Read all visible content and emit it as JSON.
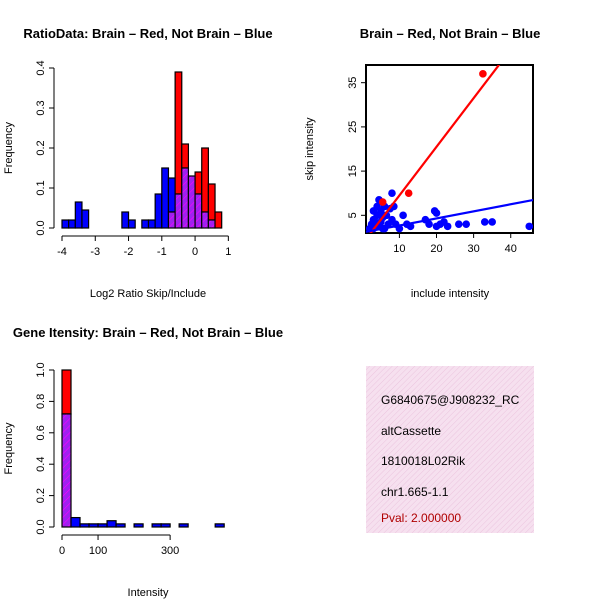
{
  "colors": {
    "red": "#ff0000",
    "blue": "#0000ff",
    "purple": "#a020f0",
    "pink_panel": "#f3d8ea",
    "pval_text": "#b00000",
    "axis": "#000000"
  },
  "chart_data": [
    {
      "id": "ratio_hist",
      "type": "bar",
      "title": "RatioData: Brain – Red, Not Brain – Blue",
      "xlabel": "Log2 Ratio Skip/Include",
      "ylabel": "Frequency",
      "xlim": [
        -4,
        1.2
      ],
      "ylim": [
        0,
        0.4
      ],
      "xticks": [
        "-4",
        "-3",
        "-2",
        "-1",
        "0",
        "1"
      ],
      "xtick_values": [
        -4,
        -3,
        -2,
        -1,
        0,
        1
      ],
      "yticks": [
        "0.0",
        "0.1",
        "0.2",
        "0.3",
        "0.4"
      ],
      "ytick_values": [
        0,
        0.1,
        0.2,
        0.3,
        0.4
      ],
      "bin_edges": [
        -4.0,
        -3.8,
        -3.6,
        -3.4,
        -3.2,
        -3.0,
        -2.8,
        -2.6,
        -2.4,
        -2.2,
        -2.0,
        -1.8,
        -1.6,
        -1.4,
        -1.2,
        -1.0,
        -0.8,
        -0.6,
        -0.4,
        -0.2,
        0.0,
        0.2,
        0.4,
        0.6,
        0.8,
        1.0,
        1.2
      ],
      "series": [
        {
          "name": "Brain",
          "color": "red",
          "values": [
            0,
            0,
            0,
            0,
            0,
            0,
            0,
            0,
            0,
            0,
            0,
            0,
            0,
            0,
            0,
            0,
            0.04,
            0.39,
            0.21,
            0.13,
            0.14,
            0.2,
            0.11,
            0.04,
            0,
            0
          ]
        },
        {
          "name": "Not Brain",
          "color": "blue",
          "values": [
            0.02,
            0.02,
            0.065,
            0.045,
            0,
            0,
            0,
            0,
            0,
            0.04,
            0.02,
            0,
            0.02,
            0.02,
            0.085,
            0.15,
            0.125,
            0.085,
            0.15,
            0.13,
            0.085,
            0.04,
            0.02,
            0,
            0,
            0
          ]
        }
      ]
    },
    {
      "id": "scatter",
      "type": "scatter",
      "title": "Brain – Red, Not Brain – Blue",
      "xlabel": "include intensity",
      "ylabel": "skip intensity",
      "xlim": [
        1,
        46
      ],
      "ylim": [
        1,
        39
      ],
      "xticks": [
        "10",
        "20",
        "30",
        "40"
      ],
      "xtick_values": [
        10,
        20,
        30,
        40
      ],
      "yticks": [
        "5",
        "15",
        "25",
        "35"
      ],
      "ytick_values": [
        5,
        15,
        25,
        35
      ],
      "series": [
        {
          "name": "Brain",
          "color": "red",
          "points": [
            [
              32.5,
              37
            ],
            [
              12.5,
              10
            ],
            [
              5.5,
              8
            ]
          ],
          "fit": {
            "slope": 1.1,
            "intercept": -1.5
          }
        },
        {
          "name": "Not Brain",
          "color": "blue",
          "points": [
            [
              2,
              2
            ],
            [
              2.5,
              3
            ],
            [
              3,
              4
            ],
            [
              3,
              2
            ],
            [
              3.5,
              3.5
            ],
            [
              4,
              5
            ],
            [
              4,
              2.5
            ],
            [
              4.5,
              8.5
            ],
            [
              5,
              6
            ],
            [
              5,
              3.5
            ],
            [
              5.5,
              4.5
            ],
            [
              6,
              7
            ],
            [
              6,
              2
            ],
            [
              6.5,
              5
            ],
            [
              7,
              3
            ],
            [
              7.5,
              6.5
            ],
            [
              8,
              10
            ],
            [
              8,
              4
            ],
            [
              8.5,
              7
            ],
            [
              9,
              3
            ],
            [
              10,
              2
            ],
            [
              11,
              5
            ],
            [
              12,
              3
            ],
            [
              13,
              2.5
            ],
            [
              17,
              4
            ],
            [
              18,
              3
            ],
            [
              19.5,
              6
            ],
            [
              20,
              2.5
            ],
            [
              20,
              5.5
            ],
            [
              21,
              3
            ],
            [
              22,
              3.5
            ],
            [
              23,
              2.5
            ],
            [
              26,
              3
            ],
            [
              28,
              3
            ],
            [
              33,
              3.5
            ],
            [
              35,
              3.5
            ],
            [
              45,
              2.5
            ],
            [
              3,
              6
            ],
            [
              4,
              7
            ],
            [
              5.5,
              2
            ]
          ],
          "fit": {
            "slope": 0.16,
            "intercept": 1.1
          }
        }
      ]
    },
    {
      "id": "intensity_hist",
      "type": "bar",
      "title": "Gene Itensity: Brain – Red, Not Brain – Blue",
      "xlabel": "Intensity",
      "ylabel": "Frequency",
      "xlim": [
        0,
        480
      ],
      "ylim": [
        0,
        1.0
      ],
      "xticks": [
        "0",
        "100",
        "300"
      ],
      "xtick_values": [
        0,
        100,
        300
      ],
      "yticks": [
        "0.0",
        "0.2",
        "0.4",
        "0.6",
        "0.8",
        "1.0"
      ],
      "ytick_values": [
        0,
        0.2,
        0.4,
        0.6,
        0.8,
        1.0
      ],
      "bin_edges": [
        0,
        25,
        50,
        75,
        100,
        125,
        150,
        175,
        200,
        225,
        250,
        275,
        300,
        325,
        350,
        375,
        400,
        425,
        450,
        475
      ],
      "series": [
        {
          "name": "Brain",
          "color": "red",
          "values": [
            1.0,
            0,
            0,
            0,
            0,
            0,
            0,
            0,
            0,
            0,
            0,
            0,
            0,
            0,
            0,
            0,
            0,
            0,
            0
          ]
        },
        {
          "name": "Not Brain",
          "color": "blue",
          "values": [
            0.72,
            0.06,
            0.02,
            0.02,
            0.02,
            0.04,
            0.02,
            0,
            0.02,
            0,
            0.02,
            0.02,
            0,
            0.02,
            0,
            0,
            0,
            0.02,
            0
          ]
        }
      ]
    }
  ],
  "info_panel": {
    "lines": [
      "G6840675@J908232_RC",
      "altCassette",
      "1810018L02Rik",
      "chr1.665-1.1"
    ],
    "pval": "Pval: 2.000000"
  }
}
